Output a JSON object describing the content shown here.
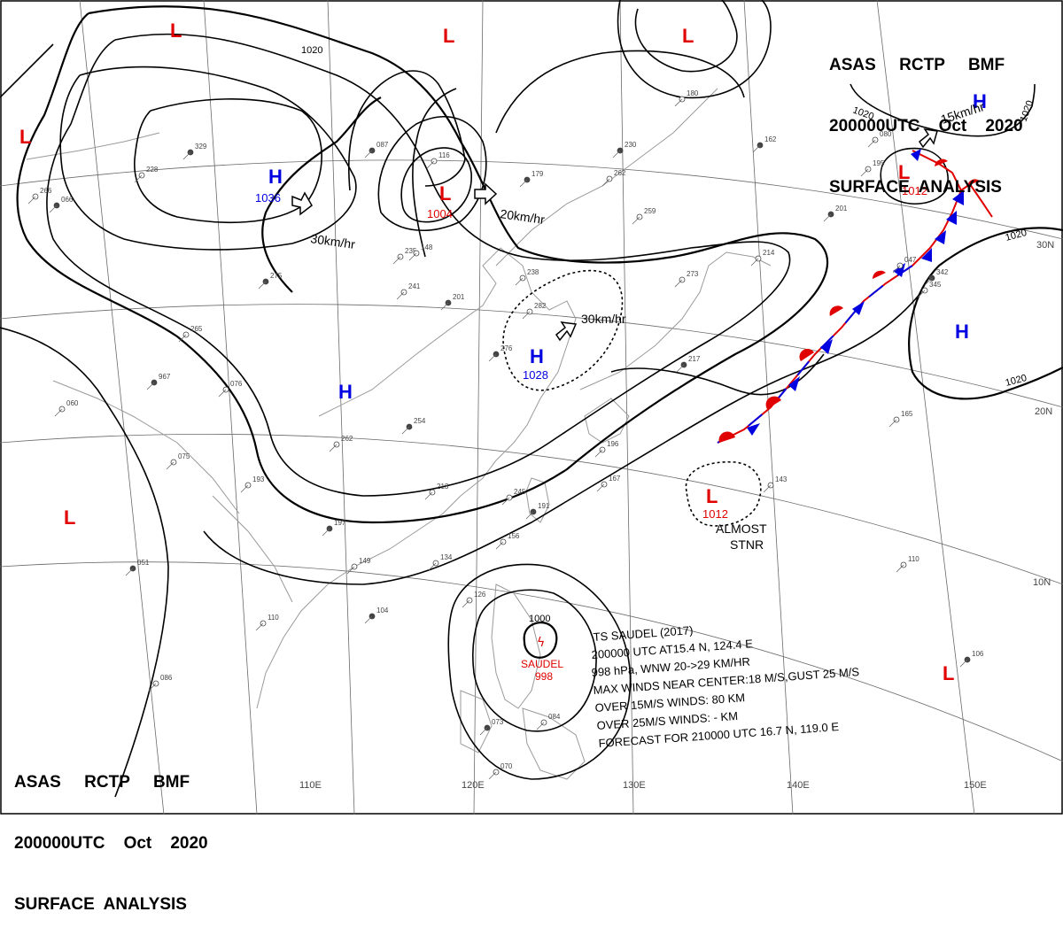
{
  "header_top": {
    "line1": "ASAS     RCTP     BMF",
    "line2": "200000UTC    Oct    2020",
    "line3": "SURFACE  ANALYSIS"
  },
  "header_bottom": {
    "line1": "ASAS     RCTP     BMF",
    "line2": "200000UTC    Oct    2020",
    "line3": "SURFACE  ANALYSIS"
  },
  "colors": {
    "low": "#e00000",
    "high": "#0000e0",
    "warm_front": "#e00000",
    "cold_front": "#0000e0",
    "isobar": "#000000",
    "coast": "#9a9a9a",
    "grid": "#6a6a6a"
  },
  "grid_labels": {
    "lon110": "110E",
    "lon120": "120E",
    "lon130": "130E",
    "lon140": "140E",
    "lon150": "150E",
    "lat30": "30N",
    "lat20": "20N",
    "lat10": "10N"
  },
  "isobar_labels": {
    "i1": "1020",
    "i2": "1020",
    "i3": "1020",
    "i4": "1020",
    "i5": "1020",
    "i6": "1000"
  },
  "pressure_centers": [
    {
      "type": "L",
      "value": ""
    },
    {
      "type": "L",
      "value": ""
    },
    {
      "type": "L",
      "value": ""
    },
    {
      "type": "L",
      "value": ""
    },
    {
      "type": "L",
      "value": ""
    },
    {
      "type": "H",
      "value": "1036"
    },
    {
      "type": "L",
      "value": "1004"
    },
    {
      "type": "H",
      "value": "1028"
    },
    {
      "type": "H",
      "value": ""
    },
    {
      "type": "L",
      "value": "1012"
    },
    {
      "type": "H",
      "value": ""
    },
    {
      "type": "L",
      "value": "1012"
    },
    {
      "type": "L",
      "value": ""
    },
    {
      "type": "H",
      "value": ""
    }
  ],
  "movement_labels": {
    "m1": "30km/hr",
    "m2": "20km/hr",
    "m3": "30km/hr",
    "m4": "15km/hr"
  },
  "almost_stnr": {
    "line1": "ALMOST",
    "line2": "STNR"
  },
  "storm": {
    "symbol_label": "SAUDEL",
    "pressure": "998"
  },
  "ts_info": {
    "line1": "TS  SAUDEL  (2017)",
    "line2": "200000 UTC  AT15.4 N, 124.4 E",
    "line3": "998 hPa, WNW  20->29 KM/HR",
    "line4": "MAX WINDS NEAR CENTER:18 M/S,GUST 25 M/S",
    "line5": "OVER 15M/S WINDS: 80 KM",
    "line6": "OVER 25M/S WINDS: - KM",
    "line7": "FORECAST FOR 210000 UTC 16.7 N, 119.0 E"
  },
  "station_values": [
    "329",
    "228",
    "266",
    "275",
    "265",
    "076",
    "967",
    "060",
    "075",
    "051",
    "086",
    "110",
    "104",
    "149",
    "134",
    "197",
    "193",
    "262",
    "254",
    "213",
    "245",
    "191",
    "156",
    "126",
    "073",
    "084",
    "070",
    "087",
    "116",
    "235",
    "201",
    "241",
    "148",
    "179",
    "238",
    "282",
    "276",
    "196",
    "167",
    "217",
    "273",
    "214",
    "201",
    "262",
    "259",
    "230",
    "180",
    "195",
    "162",
    "143",
    "110",
    "106",
    "165",
    "080",
    "342",
    "345",
    "047",
    "066"
  ]
}
